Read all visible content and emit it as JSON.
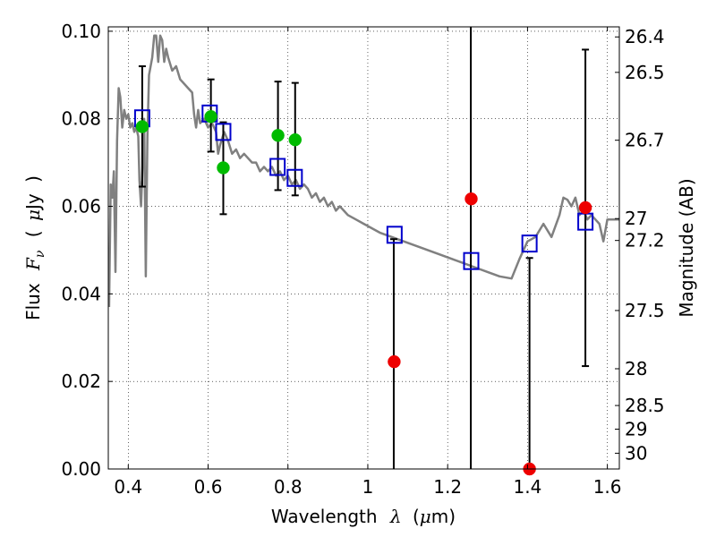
{
  "chart_data": {
    "type": "scatter",
    "xlabel_parts": [
      "Wavelength",
      "λ",
      "(",
      "μ",
      "m)"
    ],
    "ylabel_parts": [
      "Flux",
      "F",
      "ν",
      "(",
      "μ",
      "Jy",
      ")"
    ],
    "y2label": "Magnitude (AB)",
    "xlim": [
      0.35,
      1.63
    ],
    "ylim": [
      0.0,
      0.101
    ],
    "grid": true,
    "x_ticks": [
      {
        "v": 0.4,
        "label": "0.4"
      },
      {
        "v": 0.6,
        "label": "0.6"
      },
      {
        "v": 0.8,
        "label": "0.8"
      },
      {
        "v": 1.0,
        "label": "1"
      },
      {
        "v": 1.2,
        "label": "1.2"
      },
      {
        "v": 1.4,
        "label": "1.4"
      },
      {
        "v": 1.6,
        "label": "1.6"
      }
    ],
    "y_ticks": [
      {
        "v": 0.0,
        "label": "0.00"
      },
      {
        "v": 0.02,
        "label": "0.02"
      },
      {
        "v": 0.04,
        "label": "0.04"
      },
      {
        "v": 0.06,
        "label": "0.06"
      },
      {
        "v": 0.08,
        "label": "0.08"
      },
      {
        "v": 0.1,
        "label": "0.10"
      }
    ],
    "y2_ticks": [
      {
        "flux": 0.0987,
        "label": "26.4"
      },
      {
        "flux": 0.0906,
        "label": "26.5"
      },
      {
        "flux": 0.0751,
        "label": "26.7"
      },
      {
        "flux": 0.0572,
        "label": "27"
      },
      {
        "flux": 0.0522,
        "label": "27.2"
      },
      {
        "flux": 0.0362,
        "label": "27.5"
      },
      {
        "flux": 0.0229,
        "label": "28"
      },
      {
        "flux": 0.0145,
        "label": "28.5"
      },
      {
        "flux": 0.0091,
        "label": "29"
      },
      {
        "flux": 0.0036,
        "label": "30"
      }
    ],
    "series": [
      {
        "kind": "line",
        "color": "#808080",
        "points": [
          [
            0.352,
            0.037
          ],
          [
            0.356,
            0.065
          ],
          [
            0.36,
            0.062
          ],
          [
            0.364,
            0.068
          ],
          [
            0.368,
            0.045
          ],
          [
            0.372,
            0.075
          ],
          [
            0.376,
            0.087
          ],
          [
            0.38,
            0.085
          ],
          [
            0.385,
            0.078
          ],
          [
            0.39,
            0.082
          ],
          [
            0.395,
            0.08
          ],
          [
            0.4,
            0.081
          ],
          [
            0.405,
            0.078
          ],
          [
            0.41,
            0.079
          ],
          [
            0.415,
            0.077
          ],
          [
            0.42,
            0.078
          ],
          [
            0.425,
            0.076
          ],
          [
            0.428,
            0.066
          ],
          [
            0.432,
            0.06
          ],
          [
            0.436,
            0.07
          ],
          [
            0.44,
            0.08
          ],
          [
            0.444,
            0.044
          ],
          [
            0.448,
            0.076
          ],
          [
            0.452,
            0.09
          ],
          [
            0.46,
            0.094
          ],
          [
            0.465,
            0.099
          ],
          [
            0.47,
            0.099
          ],
          [
            0.475,
            0.093
          ],
          [
            0.48,
            0.099
          ],
          [
            0.485,
            0.098
          ],
          [
            0.49,
            0.093
          ],
          [
            0.495,
            0.096
          ],
          [
            0.5,
            0.094
          ],
          [
            0.51,
            0.091
          ],
          [
            0.52,
            0.092
          ],
          [
            0.53,
            0.089
          ],
          [
            0.54,
            0.088
          ],
          [
            0.55,
            0.087
          ],
          [
            0.56,
            0.086
          ],
          [
            0.565,
            0.081
          ],
          [
            0.57,
            0.078
          ],
          [
            0.575,
            0.082
          ],
          [
            0.58,
            0.079
          ],
          [
            0.59,
            0.08
          ],
          [
            0.6,
            0.078
          ],
          [
            0.61,
            0.079
          ],
          [
            0.62,
            0.077
          ],
          [
            0.625,
            0.072
          ],
          [
            0.63,
            0.074
          ],
          [
            0.64,
            0.077
          ],
          [
            0.65,
            0.075
          ],
          [
            0.66,
            0.072
          ],
          [
            0.67,
            0.073
          ],
          [
            0.68,
            0.071
          ],
          [
            0.69,
            0.072
          ],
          [
            0.7,
            0.071
          ],
          [
            0.71,
            0.07
          ],
          [
            0.72,
            0.07
          ],
          [
            0.73,
            0.068
          ],
          [
            0.74,
            0.069
          ],
          [
            0.75,
            0.068
          ],
          [
            0.76,
            0.069
          ],
          [
            0.77,
            0.067
          ],
          [
            0.78,
            0.068
          ],
          [
            0.79,
            0.066
          ],
          [
            0.8,
            0.067
          ],
          [
            0.81,
            0.065
          ],
          [
            0.82,
            0.066
          ],
          [
            0.83,
            0.064
          ],
          [
            0.84,
            0.065
          ],
          [
            0.85,
            0.064
          ],
          [
            0.86,
            0.062
          ],
          [
            0.87,
            0.063
          ],
          [
            0.88,
            0.061
          ],
          [
            0.89,
            0.062
          ],
          [
            0.9,
            0.06
          ],
          [
            0.91,
            0.061
          ],
          [
            0.92,
            0.059
          ],
          [
            0.93,
            0.06
          ],
          [
            0.94,
            0.059
          ],
          [
            0.95,
            0.058
          ],
          [
            0.97,
            0.057
          ],
          [
            0.99,
            0.056
          ],
          [
            1.01,
            0.055
          ],
          [
            1.03,
            0.054
          ],
          [
            1.06,
            0.053
          ],
          [
            1.09,
            0.052
          ],
          [
            1.12,
            0.051
          ],
          [
            1.15,
            0.05
          ],
          [
            1.18,
            0.049
          ],
          [
            1.21,
            0.048
          ],
          [
            1.24,
            0.047
          ],
          [
            1.27,
            0.046
          ],
          [
            1.3,
            0.045
          ],
          [
            1.33,
            0.044
          ],
          [
            1.36,
            0.0435
          ],
          [
            1.38,
            0.048
          ],
          [
            1.4,
            0.052
          ],
          [
            1.42,
            0.053
          ],
          [
            1.44,
            0.056
          ],
          [
            1.46,
            0.053
          ],
          [
            1.48,
            0.058
          ],
          [
            1.49,
            0.062
          ],
          [
            1.5,
            0.0615
          ],
          [
            1.51,
            0.06
          ],
          [
            1.52,
            0.062
          ],
          [
            1.53,
            0.058
          ],
          [
            1.54,
            0.059
          ],
          [
            1.55,
            0.057
          ],
          [
            1.56,
            0.058
          ],
          [
            1.57,
            0.057
          ],
          [
            1.58,
            0.056
          ],
          [
            1.59,
            0.052
          ],
          [
            1.6,
            0.057
          ],
          [
            1.61,
            0.057
          ],
          [
            1.63,
            0.057
          ]
        ]
      },
      {
        "kind": "errorbar",
        "color": "#000000",
        "bars": [
          {
            "x": 0.435,
            "lo": 0.0645,
            "hi": 0.092
          },
          {
            "x": 0.607,
            "lo": 0.0725,
            "hi": 0.089
          },
          {
            "x": 0.638,
            "lo": 0.0582,
            "hi": 0.0792
          },
          {
            "x": 0.775,
            "lo": 0.0637,
            "hi": 0.0885
          },
          {
            "x": 0.818,
            "lo": 0.0625,
            "hi": 0.0882
          },
          {
            "x": 1.065,
            "lo": 0.0,
            "hi": 0.0525
          },
          {
            "x": 1.258,
            "lo": 0.0,
            "hi": 0.101
          },
          {
            "x": 1.405,
            "lo": 0.0,
            "hi": 0.0482
          },
          {
            "x": 1.545,
            "lo": 0.0235,
            "hi": 0.0958
          }
        ]
      },
      {
        "kind": "open-square",
        "color": "#0000cc",
        "points": [
          [
            0.435,
            0.0801
          ],
          [
            0.604,
            0.0812
          ],
          [
            0.638,
            0.077
          ],
          [
            0.774,
            0.069
          ],
          [
            0.817,
            0.0665
          ],
          [
            1.067,
            0.0535
          ],
          [
            1.259,
            0.0475
          ],
          [
            1.405,
            0.0515
          ],
          [
            1.545,
            0.0565
          ]
        ]
      },
      {
        "kind": "filled-circle",
        "color": "#00bb00",
        "points": [
          [
            0.435,
            0.0782
          ],
          [
            0.607,
            0.0805
          ],
          [
            0.638,
            0.0688
          ],
          [
            0.775,
            0.0762
          ],
          [
            0.818,
            0.0752
          ]
        ]
      },
      {
        "kind": "filled-circle",
        "color": "#ee0000",
        "points": [
          [
            1.066,
            0.0245
          ],
          [
            1.259,
            0.0617
          ],
          [
            1.405,
            0.0
          ],
          [
            1.545,
            0.0597
          ]
        ]
      }
    ]
  }
}
